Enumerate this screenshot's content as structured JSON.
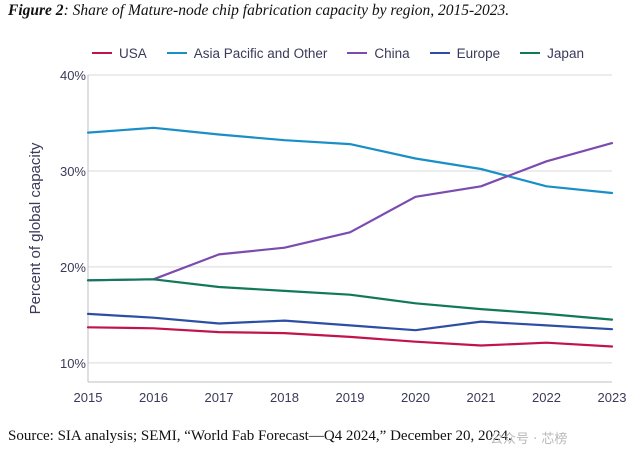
{
  "caption": {
    "lead": "Figure 2",
    "rest": ": Share of Mature-node chip fabrication capacity by region, 2015-2023."
  },
  "source_note": "Source: SIA analysis; SEMI, “World Fab Forecast—Q4 2024,” December 20, 2024.",
  "watermark": "公众号 · 芯榜",
  "chart_data": {
    "type": "line",
    "title": "Share of Mature-node chip fabrication capacity by region, 2015-2023",
    "xlabel": "",
    "ylabel": "Percent of global capacity",
    "x": [
      "2015",
      "2016",
      "2017",
      "2018",
      "2019",
      "2020",
      "2021",
      "2022",
      "2023"
    ],
    "ylim": [
      8,
      40
    ],
    "yticks": [
      10,
      20,
      30,
      40
    ],
    "ytick_labels": [
      "10%",
      "20%",
      "30%",
      "40%"
    ],
    "grid": "horizontal",
    "legend_position": "top",
    "series": [
      {
        "name": "USA",
        "color": "#c0144a",
        "values": [
          13.7,
          13.6,
          13.2,
          13.1,
          12.7,
          12.2,
          11.8,
          12.1,
          11.7
        ]
      },
      {
        "name": "Asia Pacific and Other",
        "color": "#1a8fc7",
        "values": [
          34.0,
          34.5,
          33.8,
          33.2,
          32.8,
          31.3,
          30.2,
          28.4,
          27.7
        ]
      },
      {
        "name": "China",
        "color": "#7b4bb0",
        "values": [
          18.6,
          18.7,
          21.3,
          22.0,
          23.6,
          27.3,
          28.4,
          31.0,
          32.9
        ]
      },
      {
        "name": "Europe",
        "color": "#2d4fa3",
        "values": [
          15.1,
          14.7,
          14.1,
          14.4,
          13.9,
          13.4,
          14.3,
          13.9,
          13.5
        ]
      },
      {
        "name": "Japan",
        "color": "#11785a",
        "values": [
          18.6,
          18.7,
          17.9,
          17.5,
          17.1,
          16.2,
          15.6,
          15.1,
          14.5
        ]
      }
    ]
  }
}
